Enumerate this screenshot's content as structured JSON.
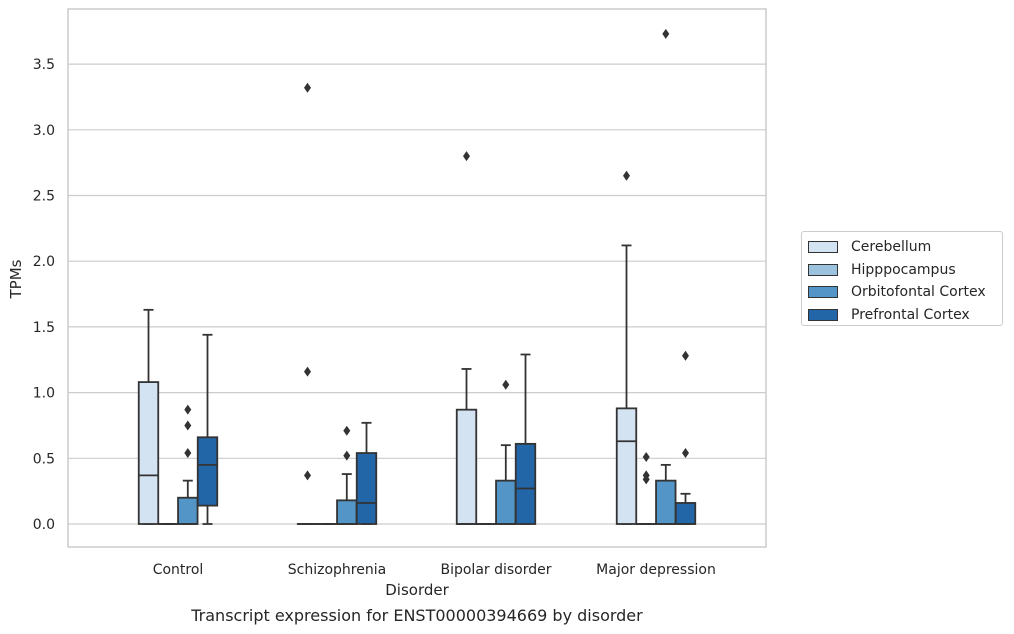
{
  "caption": "Transcript expression for ENST00000394669 by disorder",
  "chart_data": {
    "type": "box",
    "title": "",
    "xlabel": "Disorder",
    "ylabel": "TPMs",
    "ylim": [
      -0.18,
      3.95
    ],
    "yticks": [
      "0.0",
      "0.5",
      "1.0",
      "1.5",
      "2.0",
      "2.5",
      "3.0",
      "3.5"
    ],
    "categories": [
      "Control",
      "Schizophrenia",
      "Bipolar disorder",
      "Major depression"
    ],
    "grid": "horizontal",
    "legend_position": "right",
    "series": [
      {
        "name": "Cerebellum",
        "color": "#d4e3f1",
        "boxes": [
          {
            "whislo": 0.0,
            "q1": 0.0,
            "med": 0.37,
            "q3": 1.08,
            "whishi": 1.63,
            "fliers": []
          },
          {
            "whislo": 0.0,
            "q1": 0.0,
            "med": 0.0,
            "q3": 0.0,
            "whishi": 0.0,
            "fliers": [
              0.37,
              1.16,
              3.32
            ]
          },
          {
            "whislo": 0.0,
            "q1": 0.0,
            "med": 0.0,
            "q3": 0.87,
            "whishi": 1.18,
            "fliers": [
              2.8
            ]
          },
          {
            "whislo": 0.0,
            "q1": 0.0,
            "med": 0.63,
            "q3": 0.88,
            "whishi": 2.12,
            "fliers": [
              2.65
            ]
          }
        ]
      },
      {
        "name": "Hipppocampus",
        "color": "#9cc3dd",
        "boxes": [
          {
            "whislo": 0.0,
            "q1": 0.0,
            "med": 0.0,
            "q3": 0.0,
            "whishi": 0.0,
            "fliers": []
          },
          {
            "whislo": 0.0,
            "q1": 0.0,
            "med": 0.0,
            "q3": 0.0,
            "whishi": 0.0,
            "fliers": []
          },
          {
            "whislo": 0.0,
            "q1": 0.0,
            "med": 0.0,
            "q3": 0.0,
            "whishi": 0.0,
            "fliers": []
          },
          {
            "whislo": 0.0,
            "q1": 0.0,
            "med": 0.0,
            "q3": 0.0,
            "whishi": 0.0,
            "fliers": [
              0.34,
              0.37,
              0.51
            ]
          }
        ]
      },
      {
        "name": "Orbitofontal Cortex",
        "color": "#5295c6",
        "boxes": [
          {
            "whislo": 0.0,
            "q1": 0.0,
            "med": 0.0,
            "q3": 0.2,
            "whishi": 0.33,
            "fliers": [
              0.54,
              0.75,
              0.87
            ]
          },
          {
            "whislo": 0.0,
            "q1": 0.0,
            "med": 0.0,
            "q3": 0.18,
            "whishi": 0.38,
            "fliers": [
              0.52,
              0.71
            ]
          },
          {
            "whislo": 0.0,
            "q1": 0.0,
            "med": 0.0,
            "q3": 0.33,
            "whishi": 0.6,
            "fliers": [
              1.06
            ]
          },
          {
            "whislo": 0.0,
            "q1": 0.0,
            "med": 0.0,
            "q3": 0.33,
            "whishi": 0.45,
            "fliers": [
              3.73
            ]
          }
        ]
      },
      {
        "name": "Prefrontal Cortex",
        "color": "#2366a8",
        "boxes": [
          {
            "whislo": 0.0,
            "q1": 0.14,
            "med": 0.45,
            "q3": 0.66,
            "whishi": 1.44,
            "fliers": []
          },
          {
            "whislo": 0.0,
            "q1": 0.0,
            "med": 0.16,
            "q3": 0.54,
            "whishi": 0.77,
            "fliers": []
          },
          {
            "whislo": 0.0,
            "q1": 0.0,
            "med": 0.27,
            "q3": 0.61,
            "whishi": 1.29,
            "fliers": []
          },
          {
            "whislo": 0.0,
            "q1": 0.0,
            "med": 0.0,
            "q3": 0.16,
            "whishi": 0.23,
            "fliers": [
              0.54,
              1.28
            ]
          }
        ]
      }
    ]
  }
}
